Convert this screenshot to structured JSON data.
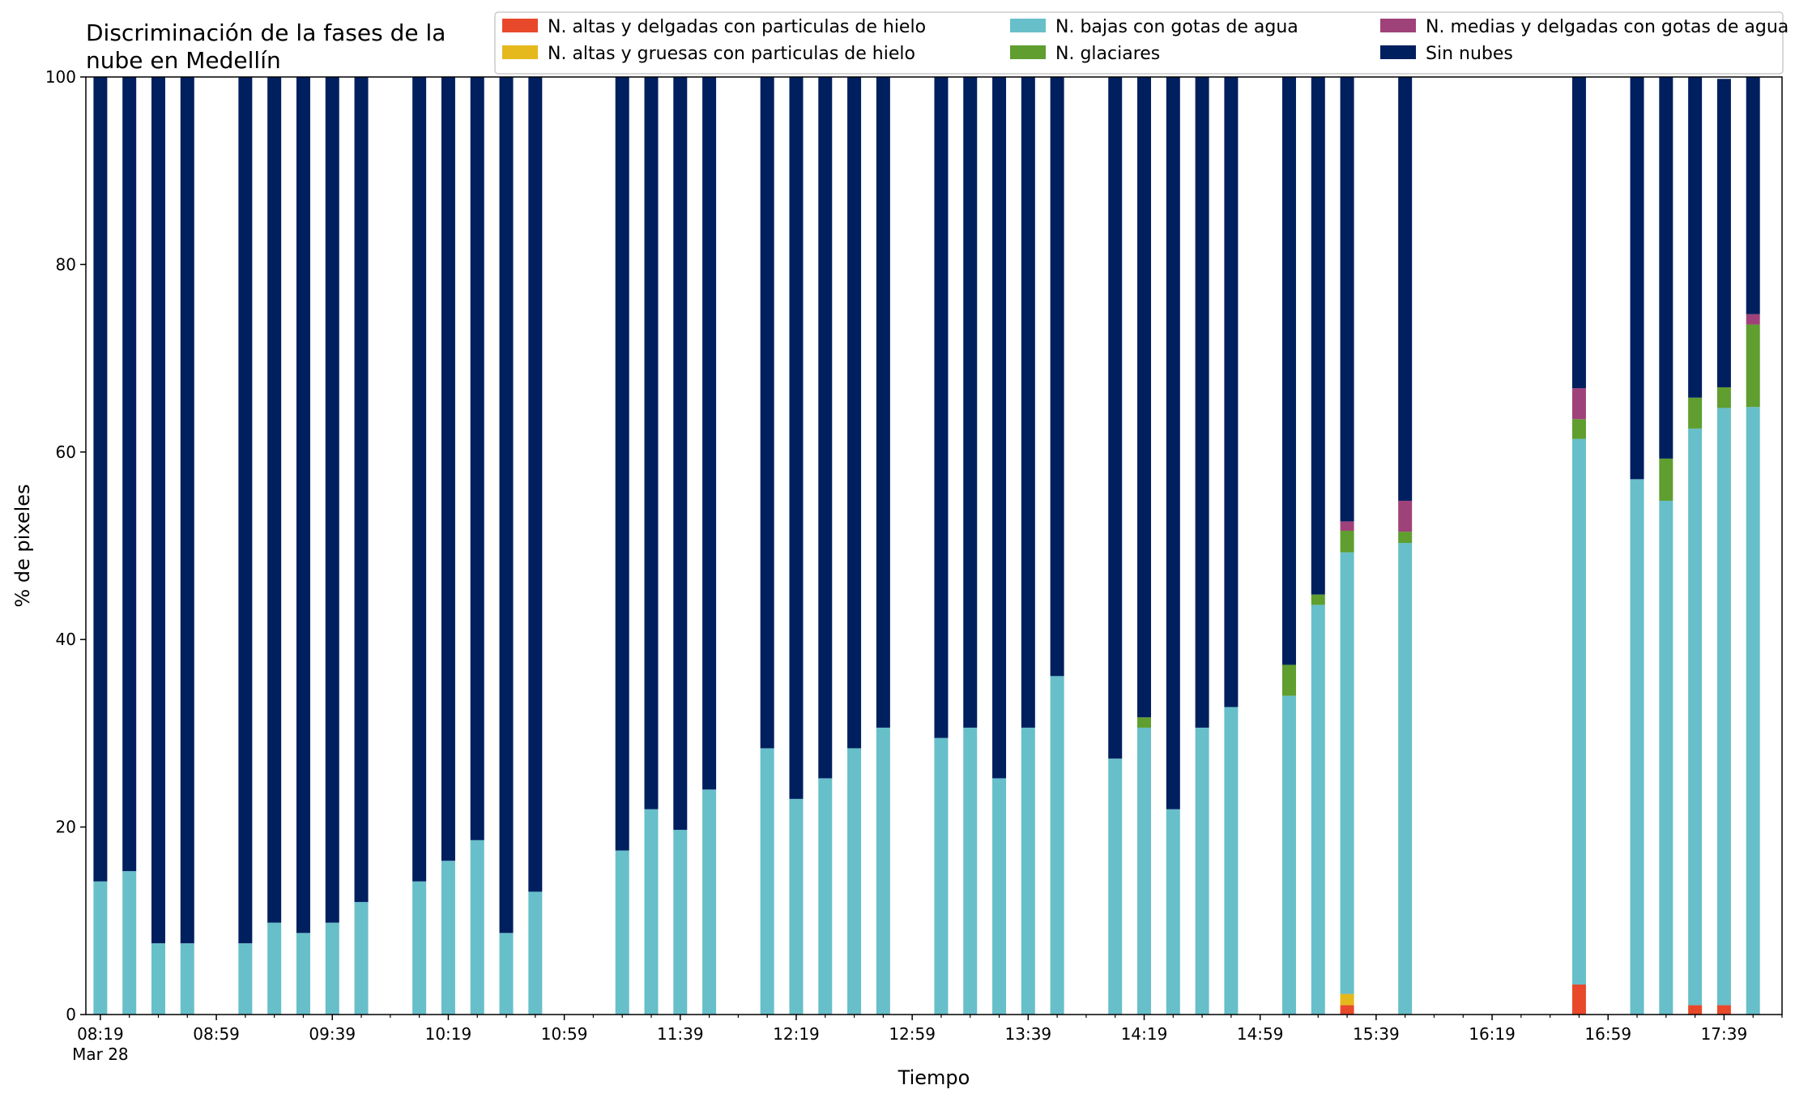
{
  "chart_data": {
    "type": "bar",
    "stacked": true,
    "title_lines": [
      "Discriminación de la fases de la",
      "nube en Medellín"
    ],
    "xlabel": "Tiempo",
    "ylabel": "% de pixeles",
    "ylim": [
      0,
      100
    ],
    "y_ticks": [
      "0",
      "20",
      "40",
      "60",
      "80",
      "100"
    ],
    "grid": false,
    "legend_position": "top-right",
    "x_tick_labels": [
      "08:19",
      "08:59",
      "09:39",
      "10:19",
      "10:59",
      "11:39",
      "12:19",
      "12:59",
      "13:39",
      "14:19",
      "14:59",
      "15:39",
      "16:19",
      "16:59",
      "17:39"
    ],
    "x_date_label": "Mar 28",
    "x_range_minutes": [
      "08:14",
      "17:59"
    ],
    "minor_tick_step_minutes": 10,
    "times": [
      "08:19",
      "08:29",
      "08:39",
      "08:49",
      "09:09",
      "09:19",
      "09:29",
      "09:39",
      "09:49",
      "10:09",
      "10:19",
      "10:29",
      "10:39",
      "10:49",
      "11:19",
      "11:29",
      "11:39",
      "11:49",
      "12:09",
      "12:19",
      "12:29",
      "12:39",
      "12:49",
      "13:09",
      "13:19",
      "13:29",
      "13:39",
      "13:49",
      "14:09",
      "14:19",
      "14:29",
      "14:39",
      "14:49",
      "15:09",
      "15:19",
      "15:29",
      "15:49",
      "16:49",
      "17:09",
      "17:19",
      "17:29",
      "17:39",
      "17:49"
    ],
    "series": [
      {
        "name": "N. altas y delgadas con particulas de hielo",
        "color": "#e8492b",
        "values": [
          0,
          0,
          0,
          0,
          0,
          0,
          0,
          0,
          0,
          0,
          0,
          0,
          0,
          0,
          0,
          0,
          0,
          0,
          0,
          0,
          0,
          0,
          0,
          0,
          0,
          0,
          0,
          0,
          0,
          0,
          0,
          0,
          0,
          0,
          0,
          1,
          0,
          3.2,
          0,
          0,
          1,
          1,
          0
        ]
      },
      {
        "name": "N. altas y gruesas con particulas de hielo",
        "color": "#e5b81c",
        "values": [
          0,
          0,
          0,
          0,
          0,
          0,
          0,
          0,
          0,
          0,
          0,
          0,
          0,
          0,
          0,
          0,
          0,
          0,
          0,
          0,
          0,
          0,
          0,
          0,
          0,
          0,
          0,
          0,
          0,
          0,
          0,
          0,
          0,
          0,
          0,
          1.2,
          0,
          0,
          0,
          0,
          0,
          0,
          0
        ]
      },
      {
        "name": "N. bajas con gotas de agua",
        "color": "#67bfca",
        "values": [
          14.2,
          15.3,
          7.6,
          7.6,
          7.6,
          9.8,
          8.7,
          9.8,
          12.0,
          14.2,
          16.4,
          18.6,
          8.7,
          13.1,
          17.5,
          21.9,
          19.7,
          24.0,
          28.4,
          23.0,
          25.2,
          28.4,
          30.6,
          29.5,
          30.6,
          25.2,
          30.6,
          36.1,
          27.3,
          30.6,
          21.9,
          30.6,
          32.8,
          34.0,
          43.7,
          47.1,
          50.3,
          58.2,
          57.1,
          54.8,
          61.5,
          63.7,
          64.8
        ]
      },
      {
        "name": "N. glaciares",
        "color": "#5f9e2f",
        "values": [
          0,
          0,
          0,
          0,
          0,
          0,
          0,
          0,
          0,
          0,
          0,
          0,
          0,
          0,
          0,
          0,
          0,
          0,
          0,
          0,
          0,
          0,
          0,
          0,
          0,
          0,
          0,
          0,
          0,
          1.1,
          0,
          0,
          0,
          3.3,
          1.1,
          2.3,
          1.2,
          2.1,
          0,
          4.5,
          3.3,
          2.2,
          8.8
        ]
      },
      {
        "name": "N. medias y delgadas con gotas de agua",
        "color": "#a0427a",
        "values": [
          0,
          0,
          0,
          0,
          0,
          0,
          0,
          0,
          0,
          0,
          0,
          0,
          0,
          0,
          0,
          0,
          0,
          0,
          0,
          0,
          0,
          0,
          0,
          0,
          0,
          0,
          0,
          0,
          0,
          0,
          0,
          0,
          0,
          0,
          0,
          1.0,
          3.3,
          3.3,
          0,
          0,
          0,
          0,
          1.1
        ]
      },
      {
        "name": "Sin nubes",
        "color": "#001f5f",
        "values": [
          85.8,
          84.7,
          92.4,
          92.4,
          92.4,
          90.2,
          91.3,
          90.2,
          88.0,
          85.8,
          83.6,
          81.4,
          91.3,
          86.9,
          82.5,
          78.1,
          80.3,
          76.0,
          71.6,
          77.0,
          74.8,
          71.6,
          69.4,
          70.5,
          69.4,
          74.8,
          69.4,
          63.9,
          72.7,
          68.3,
          78.1,
          69.4,
          67.2,
          62.7,
          55.2,
          47.4,
          45.2,
          33.2,
          42.9,
          40.7,
          34.2,
          32.9,
          25.3
        ]
      }
    ]
  }
}
